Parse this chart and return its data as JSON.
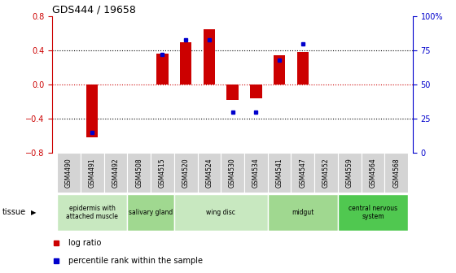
{
  "title": "GDS444 / 19658",
  "samples": [
    "GSM4490",
    "GSM4491",
    "GSM4492",
    "GSM4508",
    "GSM4515",
    "GSM4520",
    "GSM4524",
    "GSM4530",
    "GSM4534",
    "GSM4541",
    "GSM4547",
    "GSM4552",
    "GSM4559",
    "GSM4564",
    "GSM4568"
  ],
  "log_ratio": [
    0.0,
    -0.62,
    0.0,
    0.0,
    0.36,
    0.5,
    0.65,
    -0.18,
    -0.16,
    0.34,
    0.38,
    0.0,
    0.0,
    0.0,
    0.0
  ],
  "percentile": [
    null,
    15,
    null,
    null,
    72,
    83,
    83,
    30,
    30,
    68,
    80,
    null,
    null,
    null,
    null
  ],
  "ylim_left": [
    -0.8,
    0.8
  ],
  "ylim_right": [
    0,
    100
  ],
  "yticks_left": [
    -0.8,
    -0.4,
    0.0,
    0.4,
    0.8
  ],
  "yticks_right": [
    0,
    25,
    50,
    75,
    100
  ],
  "ytick_labels_right": [
    "0",
    "25",
    "50",
    "75",
    "100%"
  ],
  "dotted_lines_black": [
    -0.4,
    0.4
  ],
  "dotted_line_red": 0.0,
  "tissue_groups": [
    {
      "label": "epidermis with\nattached muscle",
      "start": 0,
      "end": 3,
      "color": "#c8e8c0"
    },
    {
      "label": "salivary gland",
      "start": 3,
      "end": 5,
      "color": "#a0d890"
    },
    {
      "label": "wing disc",
      "start": 5,
      "end": 9,
      "color": "#c8e8c0"
    },
    {
      "label": "midgut",
      "start": 9,
      "end": 12,
      "color": "#a0d890"
    },
    {
      "label": "central nervous\nsystem",
      "start": 12,
      "end": 15,
      "color": "#50c850"
    }
  ],
  "bar_color": "#cc0000",
  "percentile_color": "#0000cc",
  "bar_width": 0.5,
  "bg_color": "#ffffff",
  "title_color": "#000000",
  "left_tick_color": "#cc0000",
  "right_tick_color": "#0000cc",
  "sample_cell_bg": "#d4d4d4",
  "sample_cell_border": "#ffffff",
  "legend_log_color": "#cc0000",
  "legend_pct_color": "#0000cc"
}
